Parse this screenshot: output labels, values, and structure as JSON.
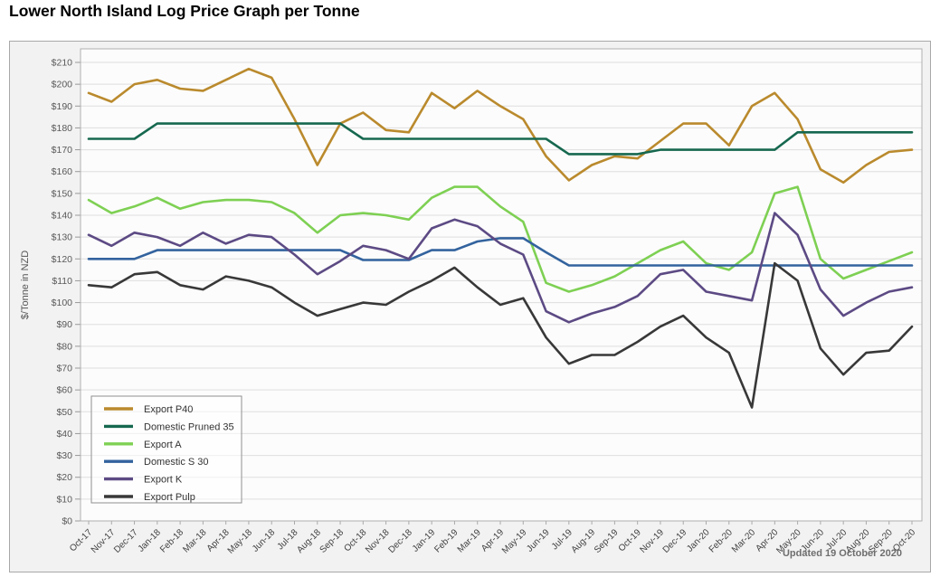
{
  "page_title": "Lower North Island Log Price Graph per Tonne",
  "updated_note": "Updated 19 October 2020",
  "chart_data": {
    "type": "line",
    "title": "Lower North Island Log Price Graph per Tonne",
    "xlabel": "",
    "ylabel": "$/Tonne in NZD",
    "ylim": [
      0,
      210
    ],
    "y_step": 10,
    "y_tick_prefix": "$",
    "grid": true,
    "legend_position": "bottom-left",
    "x": [
      "Oct-17",
      "Nov-17",
      "Dec-17",
      "Jan-18",
      "Feb-18",
      "Mar-18",
      "Apr-18",
      "May-18",
      "Jun-18",
      "Jul-18",
      "Aug-18",
      "Sep-18",
      "Oct-18",
      "Nov-18",
      "Dec-18",
      "Jan-19",
      "Feb-19",
      "Mar-19",
      "Apr-19",
      "May-19",
      "Jun-19",
      "Jul-19",
      "Aug-19",
      "Sep-19",
      "Oct-19",
      "Nov-19",
      "Dec-19",
      "Jan-20",
      "Feb-20",
      "Mar-20",
      "Apr-20",
      "May-20",
      "Jun-20",
      "Jul-20",
      "Aug-20",
      "Sep-20",
      "Oct-20"
    ],
    "series": [
      {
        "name": "Export P40",
        "color": "#BA8A2D",
        "values": [
          196,
          192,
          200,
          202,
          198,
          197,
          202,
          207,
          203,
          184,
          163,
          182,
          187,
          179,
          178,
          196,
          189,
          197,
          190,
          184,
          167,
          156,
          163,
          167,
          166,
          174,
          182,
          182,
          172,
          190,
          196,
          184,
          161,
          155,
          163,
          169,
          170
        ]
      },
      {
        "name": "Domestic Pruned 35",
        "color": "#16684F",
        "values": [
          175,
          175,
          175,
          182,
          182,
          182,
          182,
          182,
          182,
          182,
          182,
          182,
          175,
          175,
          175,
          175,
          175,
          175,
          175,
          175,
          175,
          168,
          168,
          168,
          168,
          170,
          170,
          170,
          170,
          170,
          170,
          178,
          178,
          178,
          178,
          178,
          178
        ]
      },
      {
        "name": "Export A",
        "color": "#7ED053",
        "values": [
          147,
          141,
          144,
          148,
          143,
          146,
          147,
          147,
          146,
          141,
          132,
          140,
          141,
          140,
          138,
          148,
          153,
          153,
          144,
          137,
          109,
          105,
          108,
          112,
          118,
          124,
          128,
          118,
          115,
          123,
          150,
          153,
          120,
          111,
          115,
          119,
          123
        ]
      },
      {
        "name": "Domestic S 30",
        "color": "#33639E",
        "values": [
          120,
          120,
          120,
          124,
          124,
          124,
          124,
          124,
          124,
          124,
          124,
          124,
          119.5,
          119.5,
          119.5,
          124,
          124,
          128,
          129.5,
          129.5,
          123,
          117,
          117,
          117,
          117,
          117,
          117,
          117,
          117,
          117,
          117,
          117,
          117,
          117,
          117,
          117,
          117
        ]
      },
      {
        "name": "Export K",
        "color": "#5C4A84",
        "values": [
          131,
          126,
          132,
          130,
          126,
          132,
          127,
          131,
          130,
          122,
          113,
          119,
          126,
          124,
          120,
          134,
          138,
          135,
          127,
          122,
          96,
          91,
          95,
          98,
          103,
          113,
          115,
          105,
          103,
          101,
          141,
          131,
          106,
          94,
          100,
          105,
          107
        ]
      },
      {
        "name": "Export Pulp",
        "color": "#383838",
        "values": [
          108,
          107,
          113,
          114,
          108,
          106,
          112,
          110,
          107,
          100,
          94,
          97,
          100,
          99,
          105,
          110,
          116,
          107,
          99,
          102,
          84,
          72,
          76,
          76,
          82,
          89,
          94,
          84,
          77,
          52,
          118,
          110,
          79,
          67,
          77,
          78,
          89
        ]
      }
    ]
  }
}
